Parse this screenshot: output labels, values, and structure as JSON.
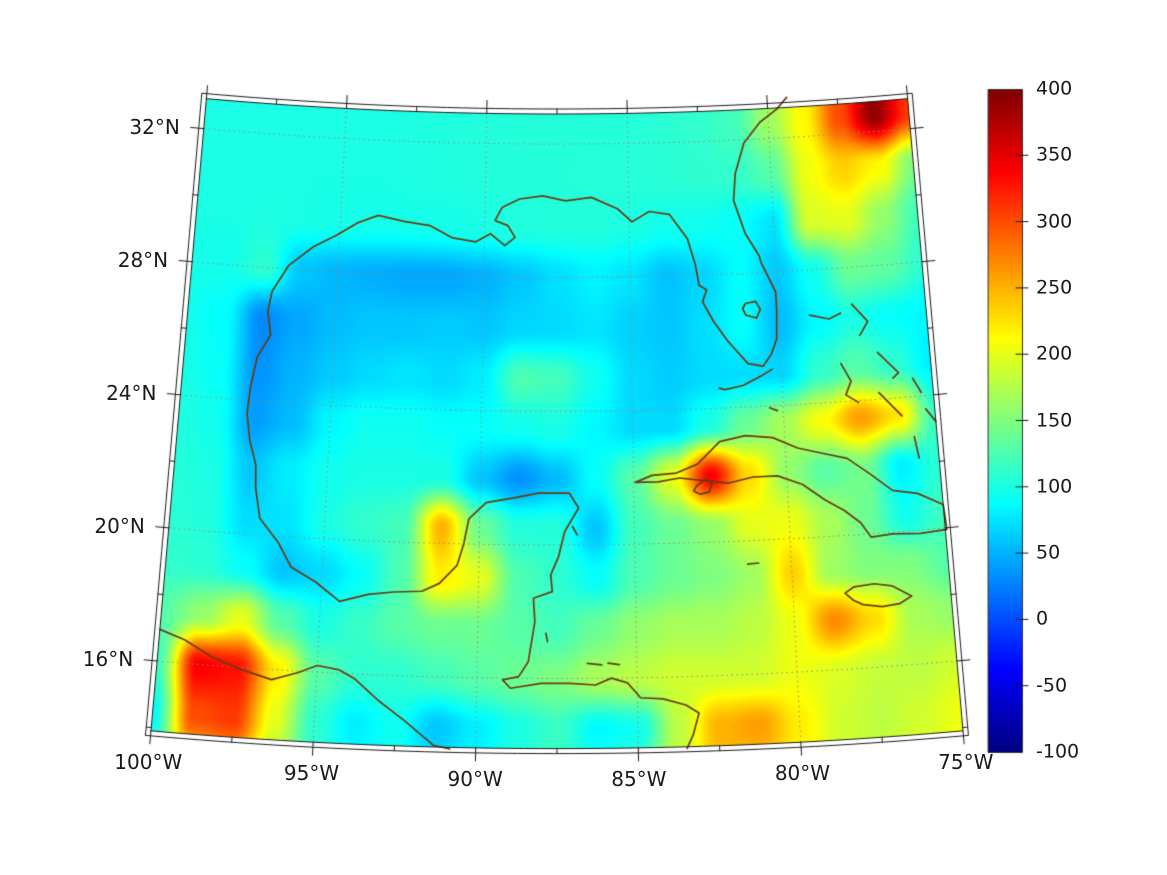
{
  "figure": {
    "background": "#ffffff",
    "title": ""
  },
  "colors": {
    "coastline": "#6b3c10",
    "gridline": "#958c7c",
    "frame": "#1a1a1a",
    "text": "#1a1a1a",
    "background": "#ffffff"
  },
  "chart_data": {
    "type": "heatmap",
    "title": "",
    "projection": "lambert-conformal-conic",
    "map_extent": {
      "lon_min": -100,
      "lon_max": -75,
      "lat_min": 13.9,
      "lat_max": 32.9
    },
    "lat_ticks": [
      {
        "label": "32°N",
        "lat": 32
      },
      {
        "label": "28°N",
        "lat": 28
      },
      {
        "label": "24°N",
        "lat": 24
      },
      {
        "label": "20°N",
        "lat": 20
      },
      {
        "label": "16°N",
        "lat": 16
      }
    ],
    "lon_ticks": [
      {
        "label": "100°W",
        "lon": -100
      },
      {
        "label": "95°W",
        "lon": -95
      },
      {
        "label": "90°W",
        "lon": -90
      },
      {
        "label": "85°W",
        "lon": -85
      },
      {
        "label": "80°W",
        "lon": -80
      },
      {
        "label": "75°W",
        "lon": -75
      }
    ],
    "gridline_lats": [
      16,
      20,
      24,
      28,
      32
    ],
    "gridline_lons": [
      -95,
      -90,
      -85,
      -80
    ],
    "colorbar": {
      "vmin": -100,
      "vmax": 400,
      "colormap": "jet",
      "position": "right",
      "tick_values": [
        400,
        350,
        300,
        250,
        200,
        150,
        100,
        50,
        0,
        -50,
        -100
      ],
      "tick_labels": [
        "400",
        "350",
        "300",
        "250",
        "200",
        "150",
        "100",
        "50",
        "0",
        "-50",
        "-100"
      ],
      "key_colors": [
        {
          "value": -100,
          "color": "#00008f"
        },
        {
          "value": -37.5,
          "color": "#0000ff"
        },
        {
          "value": 87.5,
          "color": "#00ffff"
        },
        {
          "value": 212.5,
          "color": "#ffff00"
        },
        {
          "value": 337.5,
          "color": "#ff0000"
        },
        {
          "value": 400,
          "color": "#7f0000"
        }
      ]
    },
    "grid": {
      "lon_start": -100,
      "lon_step": 1.25,
      "lat_start": 34,
      "lat_step": -1.5,
      "values": [
        [
          100,
          100,
          100,
          100,
          100,
          100,
          102,
          103,
          104,
          105,
          105,
          105,
          105,
          108,
          112,
          120,
          165,
          215,
          300,
          390,
          310
        ],
        [
          100,
          100,
          100,
          100,
          100,
          100,
          102,
          103,
          104,
          105,
          105,
          105,
          105,
          108,
          112,
          120,
          165,
          215,
          300,
          390,
          310
        ],
        [
          100,
          100,
          100,
          100,
          100,
          100,
          102,
          103,
          104,
          105,
          105,
          106,
          106,
          108,
          110,
          112,
          130,
          205,
          235,
          215,
          150
        ],
        [
          100,
          100,
          102,
          100,
          98,
          97,
          97,
          98,
          100,
          103,
          104,
          104,
          100,
          96,
          95,
          90,
          75,
          195,
          200,
          160,
          120
        ],
        [
          98,
          96,
          110,
          60,
          52,
          48,
          45,
          45,
          50,
          60,
          72,
          82,
          75,
          58,
          68,
          88,
          62,
          95,
          140,
          135,
          110
        ],
        [
          95,
          88,
          30,
          45,
          55,
          60,
          60,
          63,
          60,
          68,
          70,
          75,
          65,
          60,
          72,
          90,
          55,
          85,
          100,
          90,
          85
        ],
        [
          98,
          90,
          35,
          50,
          62,
          70,
          75,
          70,
          80,
          125,
          120,
          95,
          70,
          63,
          70,
          72,
          68,
          110,
          130,
          110,
          80
        ],
        [
          102,
          95,
          40,
          55,
          85,
          95,
          95,
          90,
          90,
          95,
          100,
          85,
          70,
          70,
          100,
          140,
          170,
          210,
          260,
          225,
          115
        ],
        [
          105,
          100,
          60,
          80,
          95,
          100,
          100,
          100,
          60,
          35,
          55,
          90,
          130,
          200,
          340,
          230,
          160,
          130,
          145,
          80,
          108
        ],
        [
          108,
          103,
          70,
          75,
          100,
          112,
          120,
          250,
          140,
          105,
          105,
          60,
          120,
          140,
          160,
          200,
          205,
          170,
          140,
          95,
          118
        ],
        [
          112,
          108,
          90,
          60,
          70,
          90,
          125,
          220,
          200,
          125,
          110,
          90,
          125,
          140,
          150,
          165,
          235,
          165,
          150,
          150,
          130
        ],
        [
          130,
          160,
          200,
          130,
          100,
          115,
          130,
          140,
          140,
          130,
          120,
          140,
          160,
          170,
          170,
          180,
          205,
          270,
          230,
          170,
          160
        ],
        [
          120,
          340,
          330,
          220,
          130,
          110,
          110,
          120,
          130,
          140,
          150,
          170,
          180,
          190,
          190,
          190,
          205,
          195,
          185,
          180,
          190
        ],
        [
          90,
          300,
          310,
          200,
          110,
          80,
          95,
          60,
          80,
          100,
          115,
          85,
          95,
          180,
          250,
          260,
          220,
          190,
          180,
          190,
          205
        ],
        [
          100,
          220,
          240,
          160,
          110,
          90,
          100,
          80,
          90,
          110,
          120,
          110,
          120,
          190,
          240,
          240,
          210,
          190,
          190,
          200,
          210
        ]
      ]
    },
    "coastlines": [
      [
        [
          -97.15,
          26.0
        ],
        [
          -97.3,
          26.7
        ],
        [
          -97.2,
          27.3
        ],
        [
          -96.7,
          28.1
        ],
        [
          -95.9,
          28.7
        ],
        [
          -95.1,
          29.1
        ],
        [
          -94.4,
          29.5
        ],
        [
          -93.7,
          29.75
        ],
        [
          -92.8,
          29.6
        ],
        [
          -91.9,
          29.5
        ],
        [
          -91.1,
          29.15
        ],
        [
          -90.3,
          29.05
        ],
        [
          -89.8,
          29.3
        ],
        [
          -89.3,
          28.95
        ],
        [
          -88.95,
          29.2
        ],
        [
          -89.2,
          29.55
        ],
        [
          -89.65,
          29.7
        ],
        [
          -89.4,
          30.1
        ],
        [
          -88.8,
          30.35
        ],
        [
          -88.0,
          30.45
        ],
        [
          -87.2,
          30.3
        ],
        [
          -86.3,
          30.4
        ],
        [
          -85.4,
          30.05
        ],
        [
          -84.9,
          29.65
        ],
        [
          -84.3,
          29.95
        ],
        [
          -83.6,
          29.85
        ],
        [
          -83.0,
          29.1
        ],
        [
          -82.75,
          28.3
        ],
        [
          -82.65,
          27.7
        ],
        [
          -82.4,
          27.55
        ],
        [
          -82.55,
          27.2
        ],
        [
          -82.2,
          26.6
        ],
        [
          -81.75,
          26.0
        ],
        [
          -81.1,
          25.3
        ],
        [
          -80.6,
          25.2
        ],
        [
          -80.3,
          25.55
        ],
        [
          -80.1,
          26.0
        ],
        [
          -80.05,
          26.8
        ],
        [
          -80.05,
          27.4
        ],
        [
          -80.5,
          28.3
        ],
        [
          -80.55,
          28.5
        ],
        [
          -81.0,
          29.2
        ],
        [
          -81.35,
          30.2
        ],
        [
          -81.25,
          31.0
        ],
        [
          -80.9,
          31.9
        ],
        [
          -80.3,
          32.5
        ],
        [
          -79.7,
          32.85
        ],
        [
          -79.3,
          33.2
        ]
      ],
      [
        [
          -97.15,
          26.0
        ],
        [
          -97.55,
          25.3
        ],
        [
          -97.7,
          24.4
        ],
        [
          -97.75,
          23.6
        ],
        [
          -97.6,
          22.8
        ],
        [
          -97.35,
          22.1
        ],
        [
          -97.3,
          21.4
        ],
        [
          -97.1,
          20.5
        ],
        [
          -96.45,
          19.8
        ],
        [
          -96.0,
          19.1
        ],
        [
          -95.2,
          18.7
        ],
        [
          -94.4,
          18.15
        ],
        [
          -93.5,
          18.4
        ],
        [
          -92.7,
          18.5
        ],
        [
          -91.8,
          18.55
        ],
        [
          -91.25,
          18.8
        ],
        [
          -90.7,
          19.35
        ],
        [
          -90.5,
          20.0
        ],
        [
          -90.35,
          20.75
        ],
        [
          -89.8,
          21.25
        ],
        [
          -88.9,
          21.4
        ],
        [
          -88.1,
          21.55
        ],
        [
          -87.1,
          21.55
        ],
        [
          -86.8,
          21.1
        ],
        [
          -87.25,
          20.4
        ],
        [
          -87.45,
          19.65
        ],
        [
          -87.7,
          19.1
        ],
        [
          -87.65,
          18.6
        ],
        [
          -88.25,
          18.4
        ],
        [
          -88.2,
          17.7
        ],
        [
          -88.3,
          17.1
        ],
        [
          -88.4,
          16.5
        ],
        [
          -88.7,
          16.05
        ],
        [
          -89.2,
          15.95
        ],
        [
          -88.95,
          15.7
        ],
        [
          -88.0,
          15.85
        ],
        [
          -87.1,
          15.85
        ],
        [
          -86.3,
          15.8
        ],
        [
          -85.8,
          16.0
        ],
        [
          -85.3,
          15.85
        ],
        [
          -84.9,
          15.4
        ],
        [
          -84.2,
          15.35
        ],
        [
          -83.5,
          15.15
        ],
        [
          -83.1,
          14.9
        ],
        [
          -83.3,
          14.25
        ],
        [
          -83.5,
          13.85
        ]
      ],
      [
        [
          -100.0,
          16.95
        ],
        [
          -99.2,
          16.7
        ],
        [
          -98.3,
          16.25
        ],
        [
          -97.4,
          15.95
        ],
        [
          -96.4,
          15.7
        ],
        [
          -95.6,
          15.95
        ],
        [
          -95.0,
          16.2
        ],
        [
          -94.3,
          16.1
        ],
        [
          -93.8,
          15.85
        ],
        [
          -93.0,
          15.2
        ],
        [
          -92.2,
          14.65
        ],
        [
          -91.3,
          13.95
        ],
        [
          -90.8,
          13.85
        ]
      ],
      [
        [
          -84.95,
          21.85
        ],
        [
          -84.4,
          22.05
        ],
        [
          -83.6,
          22.1
        ],
        [
          -82.9,
          22.35
        ],
        [
          -82.15,
          23.0
        ],
        [
          -81.3,
          23.15
        ],
        [
          -80.4,
          23.05
        ],
        [
          -79.6,
          22.7
        ],
        [
          -78.8,
          22.5
        ],
        [
          -78.0,
          22.3
        ],
        [
          -77.3,
          21.8
        ],
        [
          -76.6,
          21.25
        ],
        [
          -75.8,
          21.1
        ],
        [
          -75.0,
          20.7
        ],
        [
          -74.95,
          19.95
        ],
        [
          -75.8,
          19.9
        ],
        [
          -76.7,
          19.95
        ],
        [
          -77.4,
          19.9
        ],
        [
          -77.7,
          20.35
        ],
        [
          -78.2,
          20.75
        ],
        [
          -78.8,
          21.1
        ],
        [
          -79.5,
          21.6
        ],
        [
          -80.3,
          21.9
        ],
        [
          -81.1,
          21.9
        ],
        [
          -81.9,
          21.75
        ],
        [
          -82.7,
          21.85
        ],
        [
          -83.5,
          21.95
        ],
        [
          -84.2,
          21.85
        ],
        [
          -84.95,
          21.85
        ]
      ],
      [
        [
          -82.95,
          21.7
        ],
        [
          -82.65,
          21.9
        ],
        [
          -82.45,
          21.75
        ],
        [
          -82.55,
          21.5
        ],
        [
          -82.85,
          21.45
        ],
        [
          -83.05,
          21.55
        ],
        [
          -82.95,
          21.7
        ]
      ],
      [
        [
          -78.35,
          18.28
        ],
        [
          -78.05,
          18.45
        ],
        [
          -77.4,
          18.5
        ],
        [
          -76.85,
          18.4
        ],
        [
          -76.25,
          18.05
        ],
        [
          -76.65,
          17.85
        ],
        [
          -77.2,
          17.8
        ],
        [
          -77.8,
          17.9
        ],
        [
          -78.1,
          18.05
        ],
        [
          -78.35,
          18.28
        ]
      ],
      [
        [
          -81.1,
          27.1
        ],
        [
          -80.75,
          27.15
        ],
        [
          -80.6,
          26.9
        ],
        [
          -80.75,
          26.65
        ],
        [
          -81.1,
          26.75
        ],
        [
          -81.2,
          26.95
        ],
        [
          -81.1,
          27.1
        ]
      ],
      [
        [
          -80.3,
          25.1
        ],
        [
          -80.7,
          24.9
        ],
        [
          -81.3,
          24.65
        ],
        [
          -81.9,
          24.55
        ],
        [
          -82.1,
          24.6
        ]
      ],
      [
        [
          -78.95,
          26.65
        ],
        [
          -78.3,
          26.5
        ],
        [
          -77.9,
          26.65
        ]
      ],
      [
        [
          -77.5,
          26.9
        ],
        [
          -77.0,
          26.35
        ],
        [
          -77.3,
          25.95
        ]
      ],
      [
        [
          -78.0,
          25.15
        ],
        [
          -77.7,
          24.6
        ],
        [
          -77.9,
          24.2
        ],
        [
          -77.5,
          23.95
        ]
      ],
      [
        [
          -76.75,
          25.4
        ],
        [
          -76.1,
          24.75
        ],
        [
          -76.3,
          24.6
        ]
      ],
      [
        [
          -75.65,
          24.55
        ],
        [
          -75.4,
          24.1
        ]
      ],
      [
        [
          -76.8,
          24.2
        ],
        [
          -76.1,
          23.45
        ]
      ],
      [
        [
          -75.3,
          23.6
        ],
        [
          -75.0,
          23.2
        ]
      ],
      [
        [
          -75.75,
          22.8
        ],
        [
          -75.65,
          22.15
        ]
      ],
      [
        [
          -80.45,
          23.95
        ],
        [
          -80.2,
          23.85
        ]
      ],
      [
        [
          -81.4,
          19.3
        ],
        [
          -81.05,
          19.32
        ]
      ],
      [
        [
          -87.0,
          20.55
        ],
        [
          -86.85,
          20.3
        ]
      ],
      [
        [
          -86.55,
          16.45
        ],
        [
          -86.1,
          16.4
        ]
      ],
      [
        [
          -85.9,
          16.45
        ],
        [
          -85.55,
          16.4
        ]
      ],
      [
        [
          -87.85,
          17.35
        ],
        [
          -87.8,
          17.1
        ]
      ]
    ]
  }
}
